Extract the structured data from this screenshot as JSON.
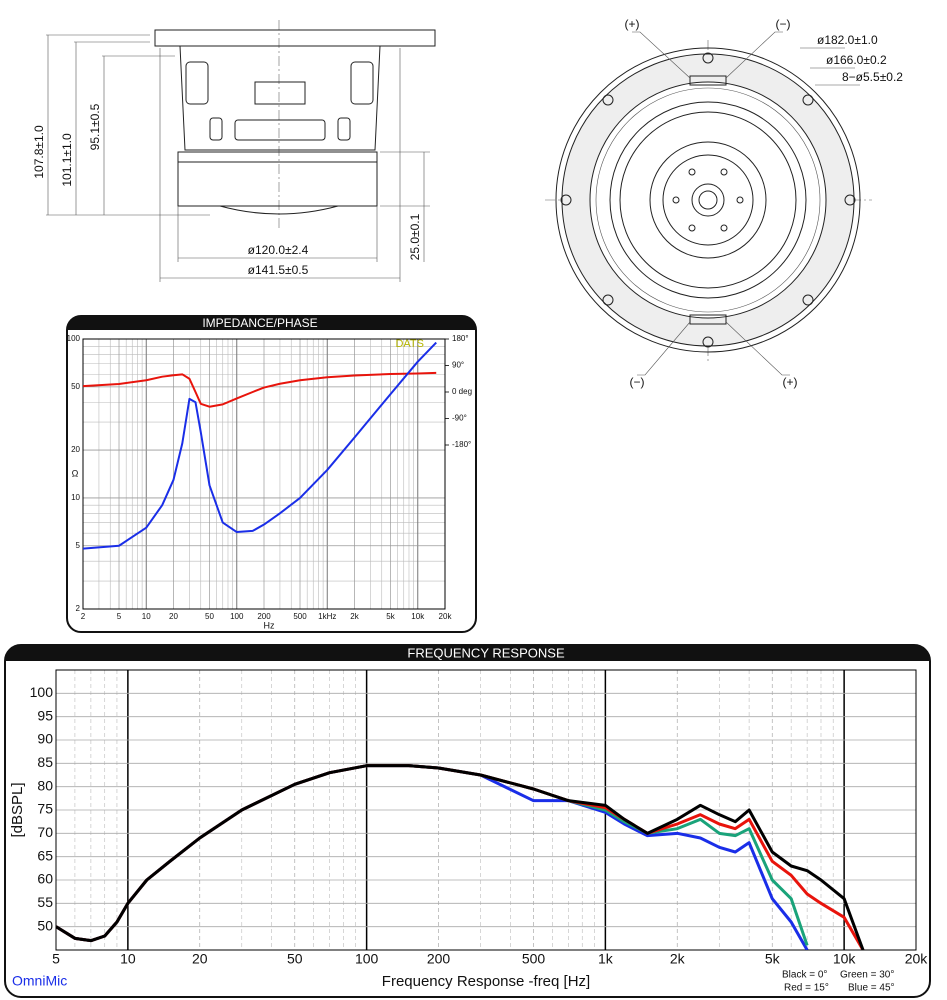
{
  "drawings": {
    "side_view": {
      "dimensions": [
        "107.8±1.0",
        "101.1±1.0",
        "95.1±0.5",
        "25.0±0.1",
        "ø120.0±2.4",
        "ø141.5±0.5"
      ]
    },
    "front_view": {
      "dimensions": [
        "ø182.0±1.0",
        "ø166.0±0.2",
        "8−ø5.5±0.2"
      ],
      "terminals": [
        "(+)",
        "(−)",
        "(−)",
        "(+)"
      ]
    }
  },
  "chart_data": [
    {
      "type": "line",
      "title": "IMPEDANCE/PHASE",
      "x_label": "Hz",
      "y_label": "Ω",
      "annotation": "DATS",
      "xscale": "log",
      "yscale": "log",
      "grid": true,
      "x": [
        2,
        5,
        10,
        15,
        20,
        25,
        30,
        35,
        40,
        50,
        70,
        100,
        150,
        200,
        300,
        500,
        1000,
        2000,
        5000,
        10000,
        16000
      ],
      "series": [
        {
          "name": "Impedance",
          "color": "#1a2ee8",
          "values": [
            4.8,
            5.0,
            6.5,
            9,
            13,
            22,
            42,
            40,
            26,
            12,
            7,
            6.1,
            6.2,
            6.8,
            8,
            10,
            15,
            24,
            45,
            72,
            95
          ]
        },
        {
          "name": "Phase",
          "color": "#e8140c",
          "axis": "y2",
          "values": [
            20,
            27,
            40,
            52,
            57,
            60,
            45,
            0,
            -40,
            -50,
            -42,
            -22,
            0,
            15,
            28,
            40,
            50,
            56,
            61,
            63,
            65
          ]
        }
      ],
      "xlim": [
        2,
        20000
      ],
      "xticks": [
        2,
        5,
        10,
        20,
        50,
        100,
        200,
        500,
        {
          "value": 1000,
          "label": "1kHz"
        },
        {
          "value": 2000,
          "label": "2k"
        },
        {
          "value": 5000,
          "label": "5k"
        },
        {
          "value": 10000,
          "label": "10k"
        },
        {
          "value": 20000,
          "label": "20k"
        }
      ],
      "ylim": [
        2,
        100
      ],
      "yticks": [
        2,
        5,
        10,
        20,
        50,
        100
      ],
      "y2lim": [
        -737,
        180
      ],
      "y2ticks": [
        {
          "value": 180,
          "label": "180°"
        },
        {
          "value": 90,
          "label": "90°"
        },
        {
          "value": 0,
          "label": "0 deg"
        },
        {
          "value": -90,
          "label": "-90°"
        },
        {
          "value": -180,
          "label": "-180°"
        }
      ]
    },
    {
      "type": "line",
      "title": "FREQUENCY RESPONSE",
      "x_label": "Frequency Response -freq [Hz]",
      "y_label": "[dBSPL]",
      "annotation": "OmniMic",
      "xscale": "log",
      "grid": true,
      "x": [
        5,
        6,
        7,
        8,
        9,
        10,
        12,
        15,
        20,
        30,
        50,
        70,
        100,
        150,
        200,
        300,
        500,
        700,
        1000,
        1200,
        1500,
        2000,
        2500,
        3000,
        3500,
        4000,
        5000,
        6000,
        7000,
        8000,
        10000,
        12000
      ],
      "series": [
        {
          "name": "Black = 0°",
          "color": "#000000",
          "values": [
            50,
            47.5,
            47,
            48,
            51,
            55,
            60,
            64,
            69,
            75,
            80.5,
            83,
            84.5,
            84.5,
            84,
            82.5,
            79.5,
            77,
            76,
            73,
            70,
            73,
            76,
            74,
            72.5,
            75,
            66,
            63,
            62,
            60,
            56,
            45
          ]
        },
        {
          "name": "Red = 15°",
          "color": "#e8140c",
          "values": [
            50,
            47.5,
            47,
            48,
            51,
            55,
            60,
            64,
            69,
            75,
            80.5,
            83,
            84.5,
            84.5,
            84,
            82.5,
            79.5,
            77,
            75.5,
            73,
            70,
            72,
            74,
            72,
            71,
            73,
            64,
            61,
            57,
            55,
            52,
            45
          ]
        },
        {
          "name": "Green = 30°",
          "color": "#1aa37a",
          "values": [
            50,
            47.5,
            47,
            48,
            51,
            55,
            60,
            64,
            69,
            75,
            80.5,
            83,
            84.5,
            84.5,
            84,
            82.5,
            79.5,
            77,
            75,
            72.5,
            70,
            71,
            73,
            70,
            69.5,
            71,
            60,
            56,
            46,
            null,
            null,
            null
          ]
        },
        {
          "name": "Blue = 45°",
          "color": "#1a2ee8",
          "values": [
            50,
            47.5,
            47,
            48,
            51,
            55,
            60,
            64,
            69,
            75,
            80.5,
            83,
            84.5,
            84.5,
            84,
            82.5,
            77,
            77,
            74.5,
            72,
            69.5,
            70,
            69,
            67,
            66,
            68,
            56,
            51,
            45,
            null,
            null,
            null
          ]
        }
      ],
      "xlim": [
        5,
        20000
      ],
      "xticks": [
        5,
        10,
        20,
        50,
        100,
        200,
        500,
        {
          "value": 1000,
          "label": "1k"
        },
        {
          "value": 2000,
          "label": "2k"
        },
        {
          "value": 5000,
          "label": "5k"
        },
        {
          "value": 10000,
          "label": "10k"
        },
        {
          "value": 20000,
          "label": "20k"
        }
      ],
      "ylim": [
        45,
        105
      ],
      "yticks": [
        50,
        55,
        60,
        65,
        70,
        75,
        80,
        85,
        90,
        95,
        100
      ]
    }
  ]
}
